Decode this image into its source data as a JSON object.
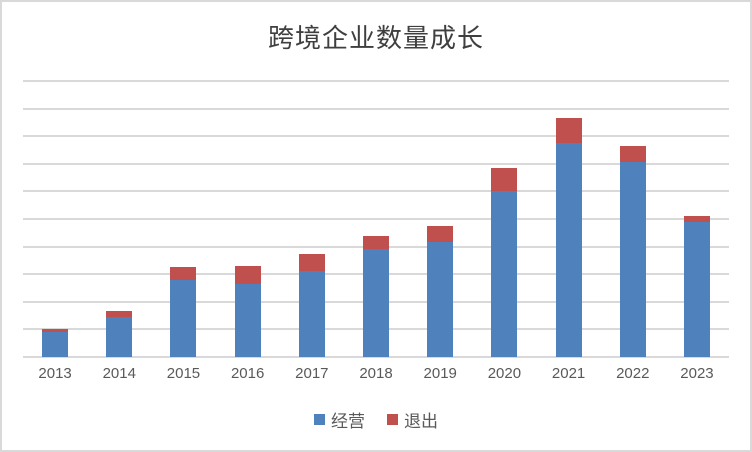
{
  "chart": {
    "title": "跨境企业数量成长"
  },
  "legend": [
    {
      "label": "经营",
      "color": "#4f81bd"
    },
    {
      "label": "退出",
      "color": "#c0504d"
    }
  ],
  "colors": {
    "operating_blue": "#4f81bd",
    "exit_red": "#c0504d",
    "gridline": "#d9d9d9",
    "axis_text": "#595959",
    "title_text": "#3f3f3f",
    "frame": "#d9d9d9"
  },
  "chart_data": {
    "type": "bar",
    "stacked": true,
    "title": "跨境企业数量成长",
    "xlabel": "",
    "ylabel": "",
    "categories": [
      "2013",
      "2014",
      "2015",
      "2016",
      "2017",
      "2018",
      "2019",
      "2020",
      "2021",
      "2022",
      "2023"
    ],
    "series": [
      {
        "name": "经营",
        "color": "#4f81bd",
        "values": [
          0.9,
          1.45,
          2.8,
          2.65,
          3.1,
          3.9,
          4.15,
          6.0,
          7.75,
          7.05,
          4.9
        ]
      },
      {
        "name": "退出",
        "color": "#c0504d",
        "values": [
          0.1,
          0.2,
          0.45,
          0.65,
          0.65,
          0.5,
          0.6,
          0.85,
          0.9,
          0.6,
          0.2
        ]
      }
    ],
    "ylim": [
      0,
      10
    ],
    "gridline_intervals": 10,
    "y_tick_labels_visible": false,
    "grid": true,
    "legend_position": "bottom"
  }
}
